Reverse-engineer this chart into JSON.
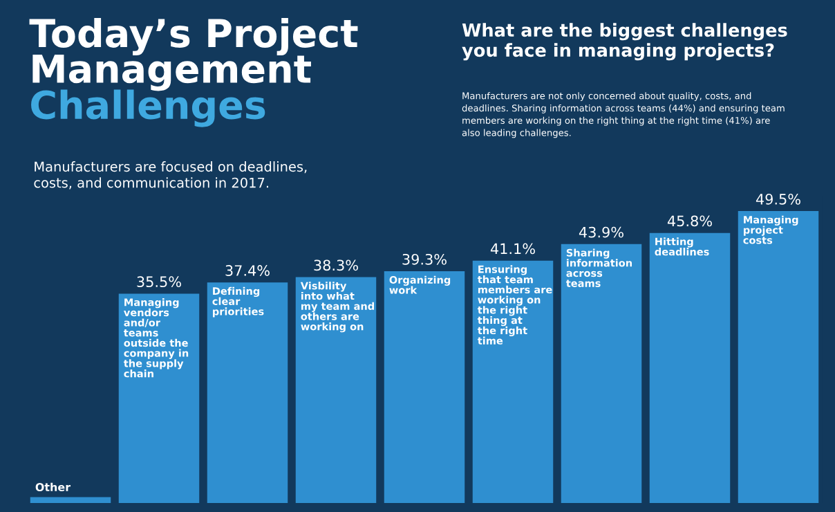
{
  "chart_data": {
    "type": "bar",
    "title": "Today’s Project\nManagement\nChallenges",
    "subtitle": "Manufacturers are focused on deadlines,\ncosts, and communication in 2017.",
    "annotations": [
      "What are the biggest challenges\nyou face in managing projects?",
      "Manufacturers are not only concerned about quality, costs, and deadlines. Sharing information across teams (44%) and ensuring team members are working on the right thing at the right time (41%) are also leading challenges."
    ],
    "categories": [
      "Other",
      "Managing vendors and/or teams outside the company in the supply chain",
      "Defining clear priorities",
      "Visbility into what my team and others are working on",
      "Organizing work",
      "Ensuring that team members are working on the right thing at the right time",
      "Sharing information across teams",
      "Hitting deadlines",
      "Managing project costs"
    ],
    "values": [
      1,
      35.5,
      37.4,
      38.3,
      39.3,
      41.1,
      43.9,
      45.8,
      49.5
    ],
    "value_labels": [
      null,
      "35.5%",
      "37.4%",
      "38.3%",
      "39.3%",
      "41.1%",
      "43.9%",
      "45.8%",
      "49.5%"
    ],
    "color": "#2f8fd0",
    "tick_labels": false,
    "legend": false
  }
}
